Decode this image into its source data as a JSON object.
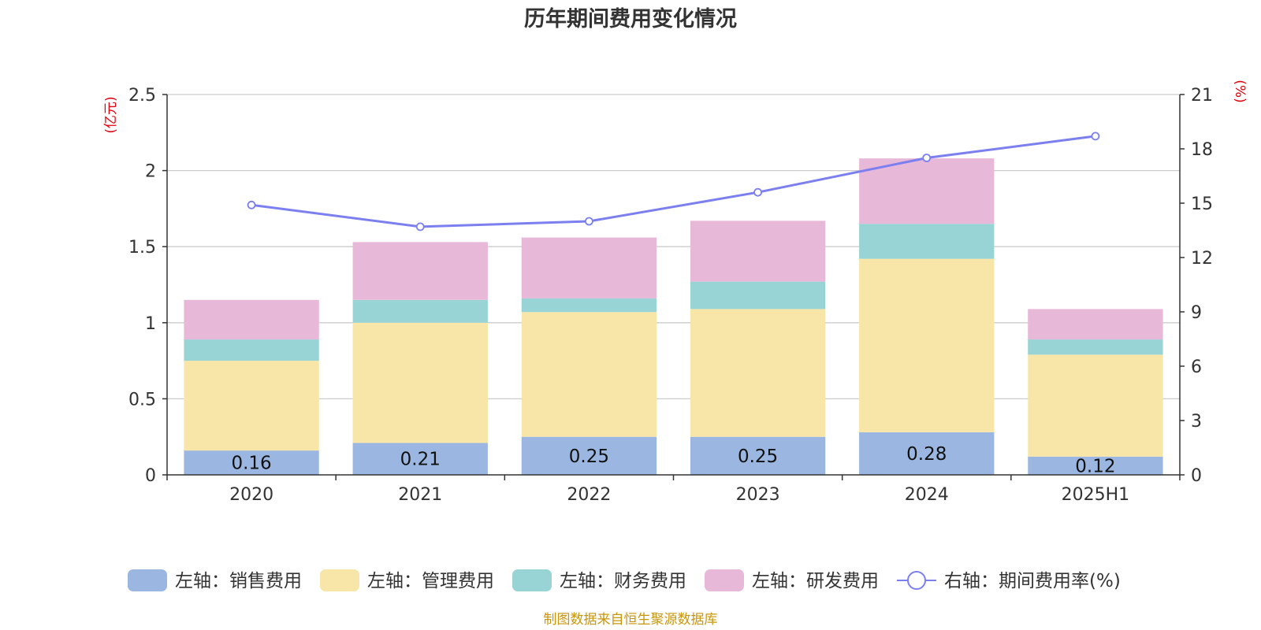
{
  "chart_data": {
    "type": "bar",
    "title": "历年期间费用变化情况",
    "categories": [
      "2020",
      "2021",
      "2022",
      "2023",
      "2024",
      "2025H1"
    ],
    "y_left": {
      "unit": "(亿元)",
      "ticks": [
        "0",
        "0.5",
        "1",
        "1.5",
        "2",
        "2.5"
      ],
      "range": [
        0,
        2.5
      ]
    },
    "y_right": {
      "unit": "(%)",
      "ticks": [
        "0",
        "3",
        "6",
        "9",
        "12",
        "15",
        "18",
        "21"
      ],
      "range": [
        0,
        21
      ]
    },
    "series": [
      {
        "name": "左轴：销售费用",
        "kind": "bar",
        "axis": "left",
        "color": "#9bb7e1",
        "values": [
          0.16,
          0.21,
          0.25,
          0.25,
          0.28,
          0.12
        ],
        "labels": [
          "0.16",
          "0.21",
          "0.25",
          "0.25",
          "0.28",
          "0.12"
        ]
      },
      {
        "name": "左轴：管理费用",
        "kind": "bar",
        "axis": "left",
        "color": "#f8e6a8",
        "values": [
          0.59,
          0.79,
          0.82,
          0.84,
          1.14,
          0.67
        ]
      },
      {
        "name": "左轴：财务费用",
        "kind": "bar",
        "axis": "left",
        "color": "#98d4d6",
        "values": [
          0.14,
          0.15,
          0.09,
          0.18,
          0.23,
          0.1
        ]
      },
      {
        "name": "左轴：研发费用",
        "kind": "bar",
        "axis": "left",
        "color": "#e8b8d9",
        "values": [
          0.26,
          0.38,
          0.4,
          0.4,
          0.43,
          0.2
        ]
      },
      {
        "name": "右轴：期间费用率(%)",
        "kind": "line",
        "axis": "right",
        "color": "#7b7fef",
        "values": [
          14.9,
          13.7,
          14.0,
          15.6,
          17.5,
          18.7
        ]
      }
    ],
    "grid": true,
    "legend_position": "bottom"
  },
  "source": "制图数据来自恒生聚源数据库"
}
